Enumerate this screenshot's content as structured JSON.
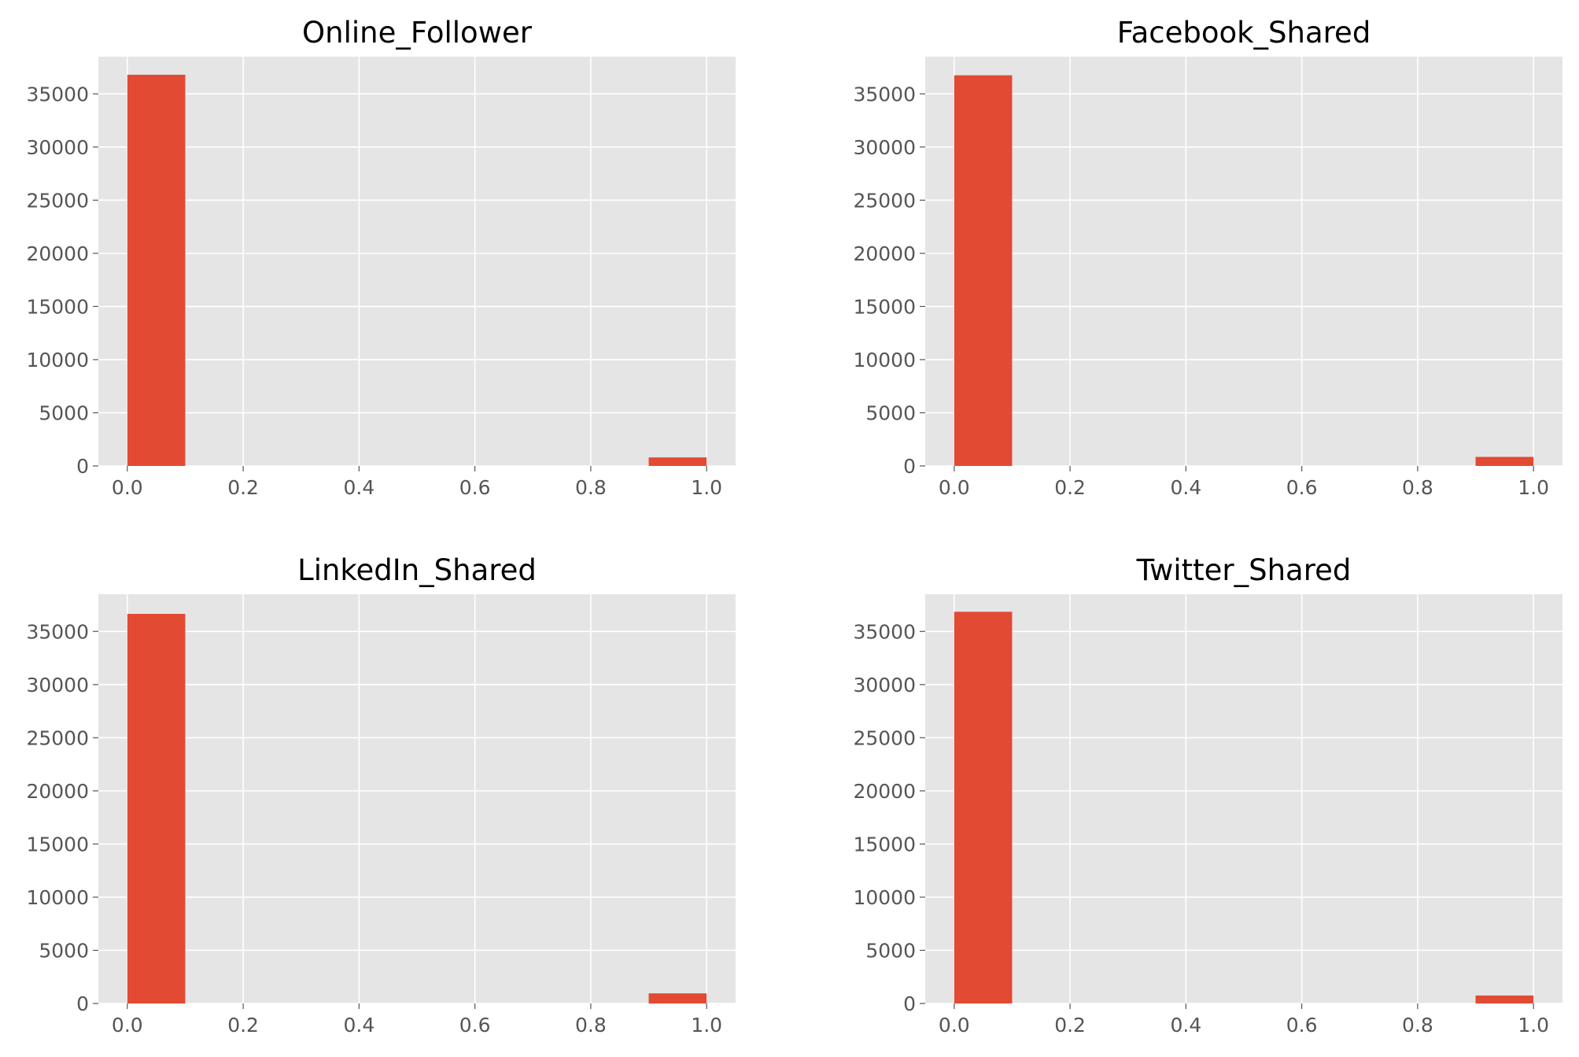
{
  "chart_data": [
    {
      "type": "bar",
      "title": "Online_Follower",
      "bin_edges": [
        0.0,
        0.1,
        0.2,
        0.3,
        0.4,
        0.5,
        0.6,
        0.7,
        0.8,
        0.9,
        1.0
      ],
      "values": [
        36800,
        0,
        0,
        0,
        0,
        0,
        0,
        0,
        0,
        800
      ],
      "xlim": [
        -0.05,
        1.05
      ],
      "ylim": [
        0,
        38500
      ],
      "xticks": [
        "0.0",
        "0.2",
        "0.4",
        "0.6",
        "0.8",
        "1.0"
      ],
      "yticks": [
        "0",
        "5000",
        "10000",
        "15000",
        "20000",
        "25000",
        "30000",
        "35000"
      ],
      "xlabel": "",
      "ylabel": "",
      "grid": true
    },
    {
      "type": "bar",
      "title": "Facebook_Shared",
      "bin_edges": [
        0.0,
        0.1,
        0.2,
        0.3,
        0.4,
        0.5,
        0.6,
        0.7,
        0.8,
        0.9,
        1.0
      ],
      "values": [
        36750,
        0,
        0,
        0,
        0,
        0,
        0,
        0,
        0,
        850
      ],
      "xlim": [
        -0.05,
        1.05
      ],
      "ylim": [
        0,
        38500
      ],
      "xticks": [
        "0.0",
        "0.2",
        "0.4",
        "0.6",
        "0.8",
        "1.0"
      ],
      "yticks": [
        "0",
        "5000",
        "10000",
        "15000",
        "20000",
        "25000",
        "30000",
        "35000"
      ],
      "xlabel": "",
      "ylabel": "",
      "grid": true
    },
    {
      "type": "bar",
      "title": "LinkedIn_Shared",
      "bin_edges": [
        0.0,
        0.1,
        0.2,
        0.3,
        0.4,
        0.5,
        0.6,
        0.7,
        0.8,
        0.9,
        1.0
      ],
      "values": [
        36650,
        0,
        0,
        0,
        0,
        0,
        0,
        0,
        0,
        950
      ],
      "xlim": [
        -0.05,
        1.05
      ],
      "ylim": [
        0,
        38500
      ],
      "xticks": [
        "0.0",
        "0.2",
        "0.4",
        "0.6",
        "0.8",
        "1.0"
      ],
      "yticks": [
        "0",
        "5000",
        "10000",
        "15000",
        "20000",
        "25000",
        "30000",
        "35000"
      ],
      "xlabel": "",
      "ylabel": "",
      "grid": true
    },
    {
      "type": "bar",
      "title": "Twitter_Shared",
      "bin_edges": [
        0.0,
        0.1,
        0.2,
        0.3,
        0.4,
        0.5,
        0.6,
        0.7,
        0.8,
        0.9,
        1.0
      ],
      "values": [
        36850,
        0,
        0,
        0,
        0,
        0,
        0,
        0,
        0,
        750
      ],
      "xlim": [
        -0.05,
        1.05
      ],
      "ylim": [
        0,
        38500
      ],
      "xticks": [
        "0.0",
        "0.2",
        "0.4",
        "0.6",
        "0.8",
        "1.0"
      ],
      "yticks": [
        "0",
        "5000",
        "10000",
        "15000",
        "20000",
        "25000",
        "30000",
        "35000"
      ],
      "xlabel": "",
      "ylabel": "",
      "grid": true
    }
  ],
  "colors": {
    "bar": "#e24a33",
    "axes_background": "#e5e5e5",
    "grid": "#ffffff",
    "tick_text": "#555555"
  }
}
